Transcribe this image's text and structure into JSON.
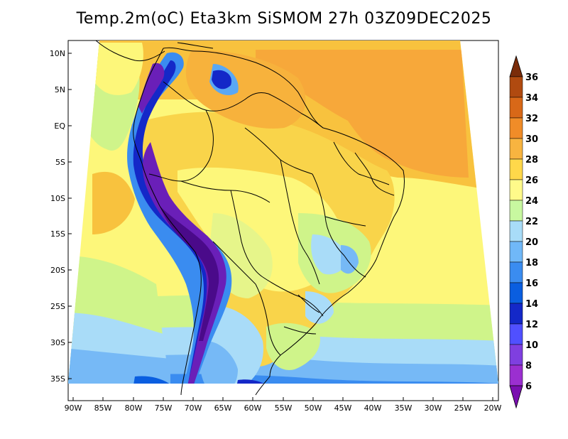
{
  "title": "Temp.2m(oC) Eta3km SiSMOM 27h 03Z09DEC2025",
  "map": {
    "variable": "2m air temperature",
    "units": "oC",
    "lat_labels": [
      "10N",
      "5N",
      "EQ",
      "5S",
      "10S",
      "15S",
      "20S",
      "25S",
      "30S",
      "35S"
    ],
    "lon_labels": [
      "90W",
      "85W",
      "80W",
      "75W",
      "70W",
      "65W",
      "60W",
      "55W",
      "50W",
      "45W",
      "40W",
      "35W",
      "30W",
      "25W",
      "20W"
    ]
  },
  "colorbar": {
    "levels": [
      "6",
      "8",
      "10",
      "12",
      "14",
      "16",
      "18",
      "20",
      "22",
      "24",
      "26",
      "28",
      "30",
      "32",
      "34",
      "36"
    ],
    "colors": [
      "#7a0fb0",
      "#9b2fd0",
      "#7f3fe0",
      "#5050ff",
      "#1428c8",
      "#0a5ee0",
      "#3a8cf0",
      "#70b8f8",
      "#a8dcf8",
      "#c8f8a0",
      "#fffa8a",
      "#ffd84a",
      "#f8b440",
      "#f08c28",
      "#d86818",
      "#b04a10",
      "#7a2c0a"
    ]
  }
}
